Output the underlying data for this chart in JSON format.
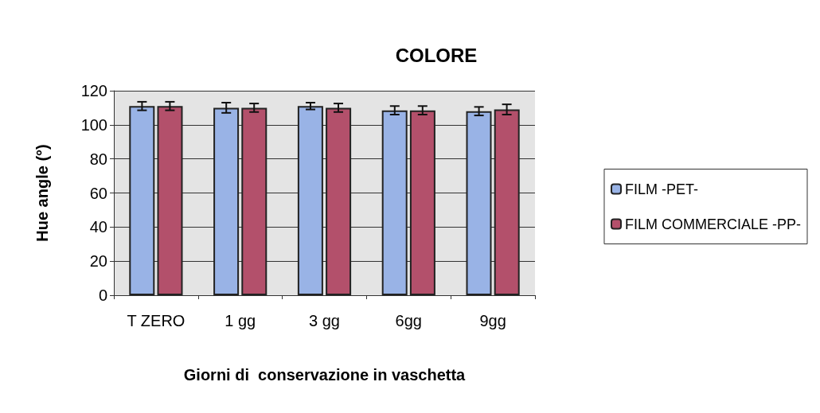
{
  "chart_data": {
    "type": "bar",
    "title": "COLORE",
    "xlabel": "Giorni di  conservazione in vaschetta",
    "ylabel": "Hue angle (°)",
    "categories": [
      "T ZERO",
      "1 gg",
      "3 gg",
      "6gg",
      "9gg"
    ],
    "series": [
      {
        "name": "FILM -PET-",
        "color": "#99b3e6",
        "values": [
          111,
          110,
          111,
          108.5,
          108
        ],
        "errors": [
          2.5,
          3,
          2,
          2.5,
          2.5
        ]
      },
      {
        "name": "FILM COMMERCIALE -PP-",
        "color": "#b3506b",
        "values": [
          111,
          110,
          110,
          108.5,
          109
        ],
        "errors": [
          2.5,
          2.5,
          2.5,
          2.5,
          3
        ]
      }
    ],
    "ylim": [
      0,
      120
    ],
    "yticks": [
      0,
      20,
      40,
      60,
      80,
      100,
      120
    ],
    "grid": "y",
    "legend": "right"
  }
}
